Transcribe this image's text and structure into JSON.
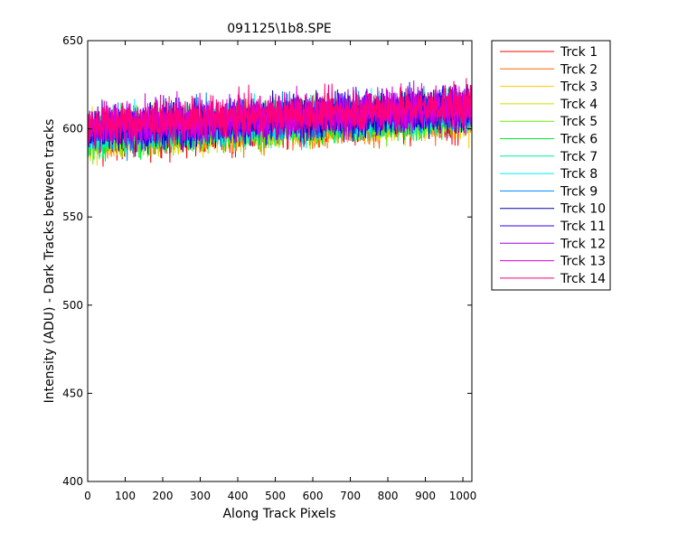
{
  "chart_data": {
    "type": "line",
    "title": "091125\\1b8.SPE",
    "xlabel": "Along Track Pixels",
    "ylabel": "Intensity (ADU) - Dark Tracks between tracks",
    "xlim": [
      0,
      1024
    ],
    "ylim": [
      400,
      650
    ],
    "x_ticks": [
      0,
      100,
      200,
      300,
      400,
      500,
      600,
      700,
      800,
      900,
      1000
    ],
    "y_ticks": [
      400,
      450,
      500,
      550,
      600,
      650
    ],
    "grid": false,
    "legend_position": "outside-right",
    "x_range": [
      1,
      1024
    ],
    "trend": {
      "start": 598,
      "end": 610
    },
    "noise_amplitude": 11,
    "series": [
      {
        "name": "Trck 1",
        "color": "#ff0000"
      },
      {
        "name": "Trck 2",
        "color": "#ff6600"
      },
      {
        "name": "Trck 3",
        "color": "#ffcc00"
      },
      {
        "name": "Trck 4",
        "color": "#ccdd00"
      },
      {
        "name": "Trck 5",
        "color": "#66ee00"
      },
      {
        "name": "Trck 6",
        "color": "#00ee33"
      },
      {
        "name": "Trck 7",
        "color": "#00ee99"
      },
      {
        "name": "Trck 8",
        "color": "#00eeee"
      },
      {
        "name": "Trck 9",
        "color": "#0088ff"
      },
      {
        "name": "Trck 10",
        "color": "#0000aa"
      },
      {
        "name": "Trck 11",
        "color": "#3300ee"
      },
      {
        "name": "Trck 12",
        "color": "#9900ee"
      },
      {
        "name": "Trck 13",
        "color": "#dd00dd"
      },
      {
        "name": "Trck 14",
        "color": "#ff0077"
      }
    ]
  }
}
